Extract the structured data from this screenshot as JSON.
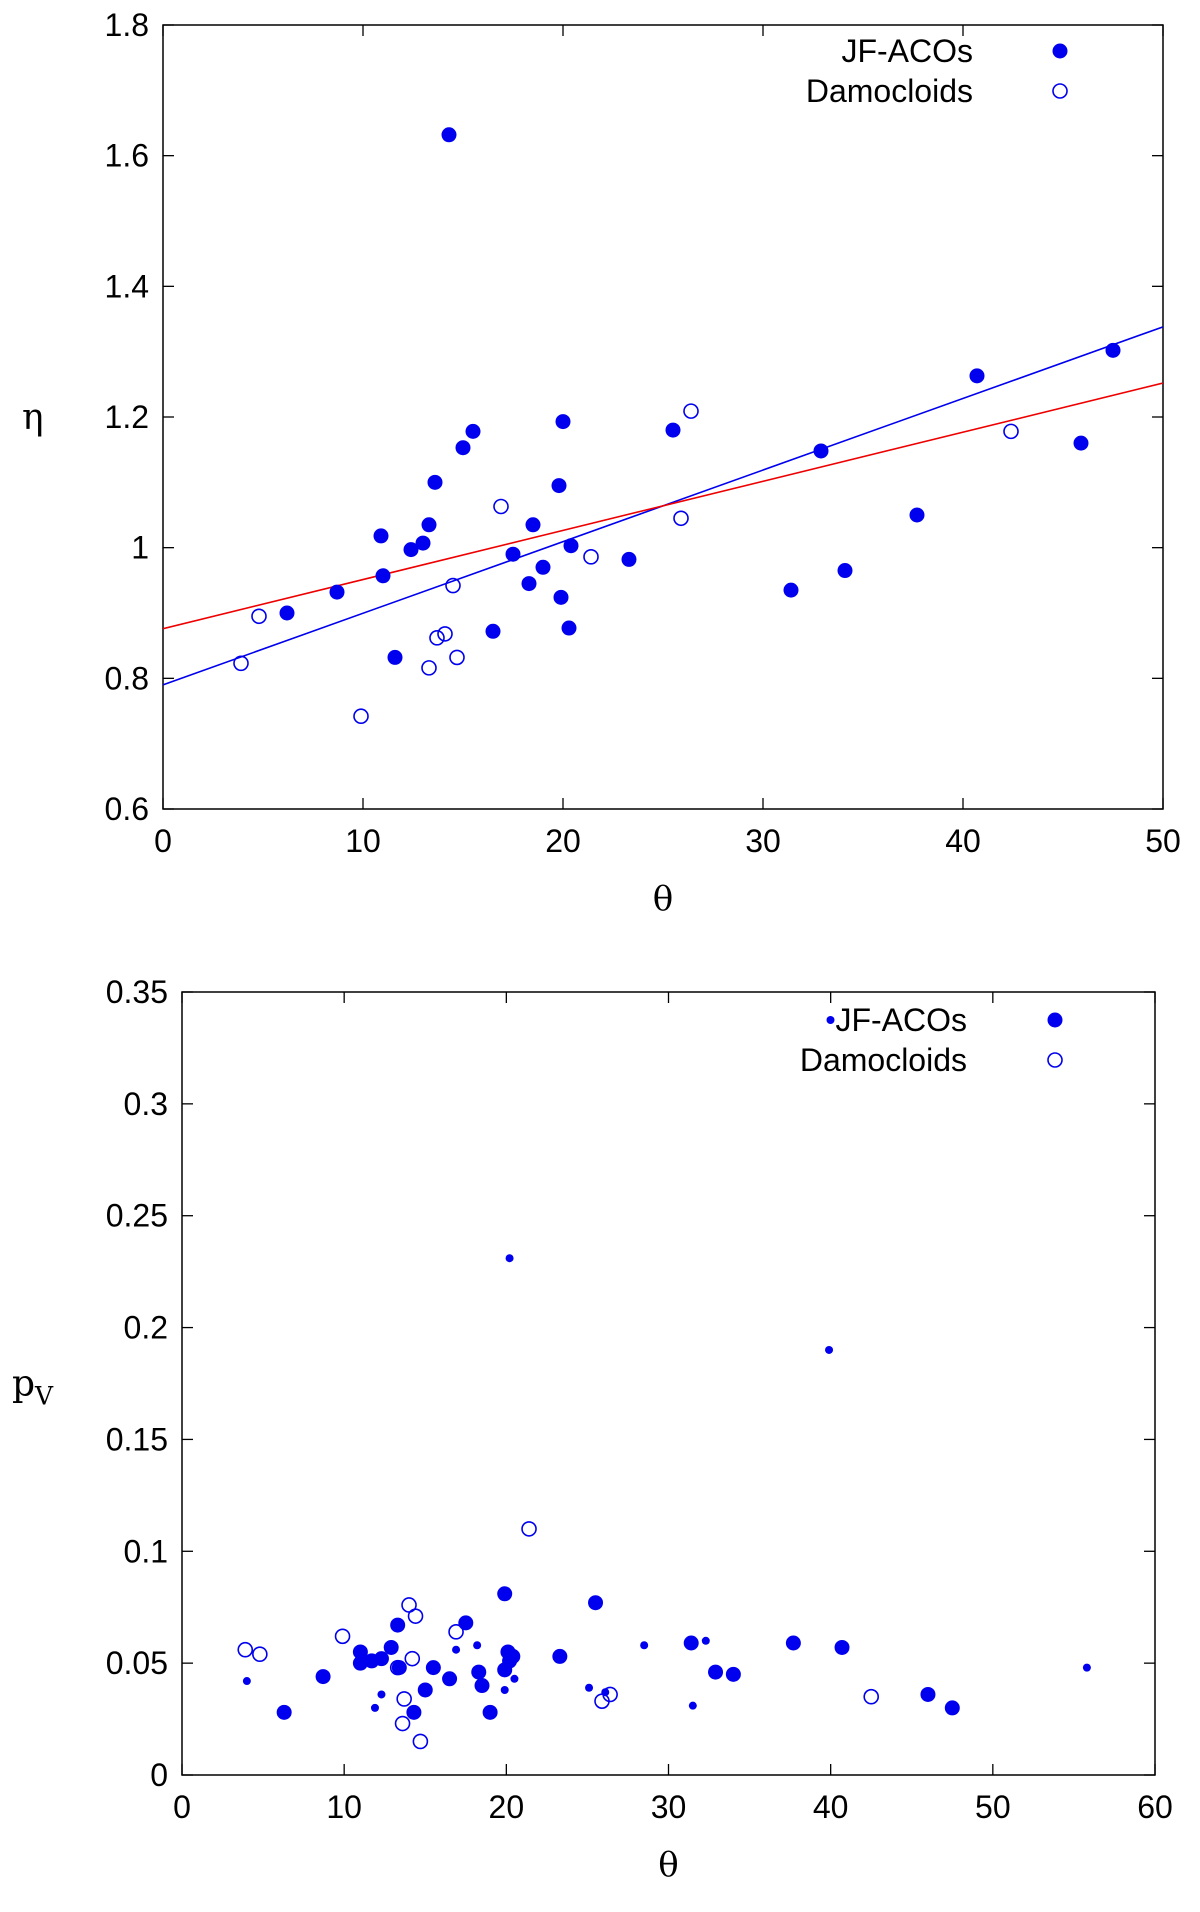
{
  "chart_data": [
    {
      "type": "scatter",
      "title": "",
      "xlabel": "θ",
      "ylabel": "η",
      "xlim": [
        0,
        50
      ],
      "ylim": [
        0.6,
        1.8
      ],
      "xticks": [
        0,
        10,
        20,
        30,
        40,
        50
      ],
      "yticks": [
        0.6,
        0.8,
        1,
        1.2,
        1.4,
        1.6,
        1.8
      ],
      "ytick_labels": [
        "0.6",
        "0.8",
        "1",
        "1.2",
        "1.4",
        "1.6",
        "1.8"
      ],
      "legend_position": "top-right",
      "series": [
        {
          "name": "JF-ACOs",
          "marker": "filled-circle",
          "color": "#0000ee",
          "points": [
            [
              6.2,
              0.9
            ],
            [
              8.7,
              0.932
            ],
            [
              10.9,
              1.018
            ],
            [
              11,
              0.957
            ],
            [
              11.6,
              0.832
            ],
            [
              12.4,
              0.997
            ],
            [
              13,
              1.007
            ],
            [
              13.3,
              1.035
            ],
            [
              13.6,
              1.1
            ],
            [
              14.3,
              1.632
            ],
            [
              15,
              1.153
            ],
            [
              15.5,
              1.178
            ],
            [
              16.5,
              0.872
            ],
            [
              17.5,
              0.99
            ],
            [
              18.3,
              0.945
            ],
            [
              18.5,
              1.035
            ],
            [
              19,
              0.97
            ],
            [
              19.8,
              1.095
            ],
            [
              19.9,
              0.924
            ],
            [
              20,
              1.193
            ],
            [
              20.3,
              0.877
            ],
            [
              20.4,
              1.003
            ],
            [
              23.3,
              0.982
            ],
            [
              25.5,
              1.18
            ],
            [
              31.4,
              0.935
            ],
            [
              32.9,
              1.148
            ],
            [
              34.1,
              0.965
            ],
            [
              37.7,
              1.05
            ],
            [
              40.7,
              1.263
            ],
            [
              45.9,
              1.16
            ],
            [
              47.5,
              1.302
            ]
          ]
        },
        {
          "name": "Damocloids",
          "marker": "open-circle",
          "color": "#0000ee",
          "points": [
            [
              3.9,
              0.823
            ],
            [
              4.8,
              0.895
            ],
            [
              9.9,
              0.742
            ],
            [
              13.3,
              0.816
            ],
            [
              13.7,
              0.862
            ],
            [
              14.1,
              0.868
            ],
            [
              14.5,
              0.942
            ],
            [
              14.7,
              0.832
            ],
            [
              16.9,
              1.063
            ],
            [
              21.4,
              0.986
            ],
            [
              25.9,
              1.045
            ],
            [
              26.4,
              1.209
            ],
            [
              42.4,
              1.178
            ]
          ]
        }
      ],
      "fit_lines": [
        {
          "name": "blue-fit",
          "color": "#0000ee",
          "x": [
            0,
            50
          ],
          "y": [
            0.79,
            1.338
          ]
        },
        {
          "name": "red-fit",
          "color": "#ee0000",
          "x": [
            0,
            50
          ],
          "y": [
            0.876,
            1.252
          ]
        }
      ]
    },
    {
      "type": "scatter",
      "title": "",
      "xlabel": "θ",
      "ylabel": "p",
      "ylabel_sub": "V",
      "xlim": [
        0,
        60
      ],
      "ylim": [
        0,
        0.35
      ],
      "xticks": [
        0,
        10,
        20,
        30,
        40,
        50,
        60
      ],
      "yticks": [
        0,
        0.05,
        0.1,
        0.15,
        0.2,
        0.25,
        0.3,
        0.35
      ],
      "ytick_labels": [
        "0",
        "0.05",
        "0.1",
        "0.15",
        "0.2",
        "0.25",
        "0.3",
        "0.35"
      ],
      "legend_position": "top-right",
      "legend_entries": [
        {
          "name": "JF-ACOs",
          "markers": [
            "small-filled-circle",
            "filled-circle"
          ]
        },
        {
          "name": "Damocloids",
          "markers": [
            "open-circle"
          ]
        }
      ],
      "series": [
        {
          "name": "JF-ACOs (large)",
          "marker": "filled-circle",
          "color": "#0000ee",
          "points": [
            [
              6.3,
              0.028
            ],
            [
              8.7,
              0.044
            ],
            [
              11,
              0.055
            ],
            [
              11,
              0.05
            ],
            [
              11.7,
              0.051
            ],
            [
              12.3,
              0.052
            ],
            [
              12.9,
              0.057
            ],
            [
              13.3,
              0.067
            ],
            [
              13.4,
              0.048
            ],
            [
              14.3,
              0.028
            ],
            [
              15,
              0.038
            ],
            [
              15.5,
              0.048
            ],
            [
              16.5,
              0.043
            ],
            [
              17.5,
              0.068
            ],
            [
              18.3,
              0.046
            ],
            [
              18.5,
              0.04
            ],
            [
              19,
              0.028
            ],
            [
              19.9,
              0.081
            ],
            [
              19.9,
              0.047
            ],
            [
              20.1,
              0.055
            ],
            [
              20.2,
              0.051
            ],
            [
              20.4,
              0.053
            ],
            [
              23.3,
              0.053
            ],
            [
              25.5,
              0.077
            ],
            [
              31.4,
              0.059
            ],
            [
              32.9,
              0.046
            ],
            [
              34,
              0.045
            ],
            [
              37.7,
              0.059
            ],
            [
              40.7,
              0.057
            ],
            [
              46,
              0.036
            ],
            [
              47.5,
              0.03
            ]
          ]
        },
        {
          "name": "JF-ACOs (small)",
          "marker": "small-filled-circle",
          "color": "#0000ee",
          "points": [
            [
              4,
              0.042
            ],
            [
              11.9,
              0.03
            ],
            [
              12.3,
              0.036
            ],
            [
              16.9,
              0.056
            ],
            [
              18.2,
              0.058
            ],
            [
              19.9,
              0.038
            ],
            [
              20.2,
              0.231
            ],
            [
              20.5,
              0.043
            ],
            [
              25.1,
              0.039
            ],
            [
              26.1,
              0.037
            ],
            [
              28.5,
              0.058
            ],
            [
              31.5,
              0.031
            ],
            [
              32.3,
              0.06
            ],
            [
              39.9,
              0.19
            ],
            [
              55.8,
              0.048
            ]
          ]
        },
        {
          "name": "Damocloids",
          "marker": "open-circle",
          "color": "#0000ee",
          "points": [
            [
              3.9,
              0.056
            ],
            [
              4.8,
              0.054
            ],
            [
              9.9,
              0.062
            ],
            [
              13.3,
              0.048
            ],
            [
              13.6,
              0.023
            ],
            [
              13.7,
              0.034
            ],
            [
              14,
              0.076
            ],
            [
              14.2,
              0.052
            ],
            [
              14.4,
              0.071
            ],
            [
              14.7,
              0.015
            ],
            [
              16.9,
              0.064
            ],
            [
              21.4,
              0.11
            ],
            [
              25.9,
              0.033
            ],
            [
              26.4,
              0.036
            ],
            [
              42.5,
              0.035
            ]
          ]
        }
      ]
    }
  ]
}
